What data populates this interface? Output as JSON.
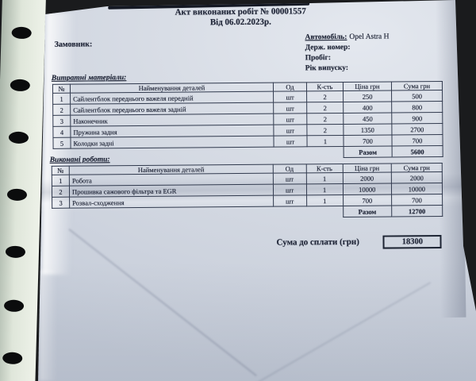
{
  "colors": {
    "background": "#1a1b1d",
    "paper": "#d5dae3",
    "strip": "#e0e7dc",
    "ink": "#242a3c",
    "table_border": "#313a4e"
  },
  "document": {
    "title_line1": "Акт виконаних робіт № 00001557",
    "title_line2": "Від 06.02.2023р.",
    "customer_label": "Замовник:",
    "vehicle": {
      "car_label": "Автомобіль:",
      "car_value": "Opel Astra H",
      "plate_label": "Держ. номер:",
      "mileage_label": "Пробіг:",
      "year_label": "Рік випуску:"
    },
    "materials": {
      "section_title": "Витратні матеріали:",
      "headers": [
        "№",
        "Найменування деталей",
        "Од",
        "К-сть",
        "Ціна грн",
        "Сума грн"
      ],
      "rows": [
        [
          "1",
          "Сайлентблок переднього важеля передній",
          "шт",
          "2",
          "250",
          "500"
        ],
        [
          "2",
          "Сайлентблок переднього важеля задній",
          "шт",
          "2",
          "400",
          "800"
        ],
        [
          "3",
          "Наконечник",
          "шт",
          "2",
          "450",
          "900"
        ],
        [
          "4",
          "Пружина задня",
          "шт",
          "2",
          "1350",
          "2700"
        ],
        [
          "5",
          "Колодки задні",
          "шт",
          "1",
          "700",
          "700"
        ]
      ],
      "total_label": "Разом",
      "total_value": "5600"
    },
    "works": {
      "section_title": "Виконані роботи:",
      "headers": [
        "№",
        "Найменування деталей",
        "Од",
        "К-сть",
        "Ціна грн",
        "Сума грн"
      ],
      "rows": [
        [
          "1",
          "Робота",
          "шт",
          "1",
          "2000",
          "2000"
        ],
        [
          "2",
          "Прошивка сажового фільтра та EGR",
          "шт",
          "1",
          "10000",
          "10000"
        ],
        [
          "3",
          "Розвал-сходження",
          "шт",
          "1",
          "700",
          "700"
        ]
      ],
      "total_label": "Разом",
      "total_value": "12700"
    },
    "summary": {
      "label": "Сума до сплати (грн)",
      "value": "18300"
    }
  }
}
